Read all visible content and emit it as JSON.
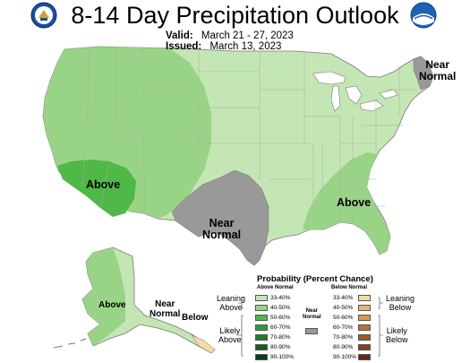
{
  "title": "8-14 Day Precipitation Outlook",
  "valid": {
    "label": "Valid:",
    "value": "March 21 - 27, 2023"
  },
  "issued": {
    "label": "Issued:",
    "value": "March 13, 2023"
  },
  "logos": {
    "left": "doc-seal-icon",
    "right": "noaa-logo-icon"
  },
  "map_labels": {
    "northeast": "Near\nNormal",
    "southwest": "Above",
    "southern_plains": "Near\nNormal",
    "southeast": "Above",
    "alaska_west": "Above",
    "alaska_south": "Near\nNormal",
    "alaska_panhandle": "Below"
  },
  "colors": {
    "water": "#ffffff",
    "land_base": "#ffffff",
    "state_border": "#aaaaaa",
    "cat_33_40": "#c4e6b4",
    "cat_40_50": "#99d486",
    "cat_50_60": "#4fb847",
    "near_normal": "#999999",
    "coast": "#777777"
  },
  "legend": {
    "title": "Probability (Percent Chance)",
    "above_header": "Above Normal",
    "below_header": "Below Normal",
    "near_header": "Near\nNormal",
    "above_ranges": [
      "33-40%",
      "40-50%",
      "50-60%",
      "60-70%",
      "70-80%",
      "80-90%",
      "90-100%"
    ],
    "above_colors": [
      "#c4e6b4",
      "#99d486",
      "#4fb847",
      "#2e9c3a",
      "#1e7b30",
      "#135e25",
      "#0a3d17"
    ],
    "below_ranges": [
      "33-40%",
      "40-50%",
      "50-60%",
      "60-70%",
      "70-80%",
      "80-90%",
      "90-100%"
    ],
    "below_colors": [
      "#f3dca3",
      "#e3b877",
      "#d49b54",
      "#b6733a",
      "#9c5930",
      "#7d4125",
      "#5c2a1a"
    ],
    "near_color": "#999999",
    "leaning_above": "Leaning\nAbove",
    "likely_above": "Likely\nAbove",
    "leaning_below": "Leaning\nBelow",
    "likely_below": "Likely\nBelow"
  }
}
